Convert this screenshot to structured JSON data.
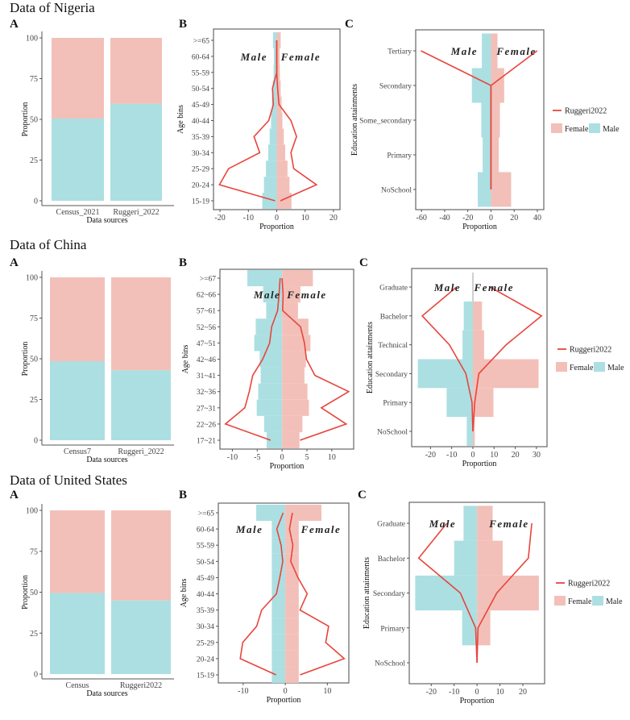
{
  "titles": [
    "Data of Nigeria",
    "Data of China",
    "Data of United States"
  ],
  "panel_letters": [
    "A",
    "B",
    "C"
  ],
  "colors": {
    "male": "#acdfe2",
    "female": "#f2c0b9",
    "line": "#e8453c",
    "axis": "#555555"
  },
  "chart_data": [
    {
      "type": "bar",
      "stacked": true,
      "panel": "A",
      "country": "Nigeria",
      "categories": [
        "Census_2021",
        "Ruggeri_2022"
      ],
      "series": [
        {
          "name": "Male",
          "values": [
            50.5,
            59.5
          ]
        },
        {
          "name": "Female",
          "values": [
            49.5,
            40.5
          ]
        }
      ],
      "xlabel": "Data sources",
      "ylabel": "Proportion",
      "ylim": [
        0,
        100
      ],
      "yticks": [
        0,
        25,
        50,
        75,
        100
      ]
    },
    {
      "type": "bar",
      "orientation": "horizontal",
      "panel": "B",
      "country": "Nigeria",
      "categories": [
        "15-19",
        "20-24",
        "25-29",
        "30-34",
        "35-39",
        "40-44",
        "45-49",
        "50-54",
        "55-59",
        "60-64",
        ">=65"
      ],
      "series": [
        {
          "name": "Male",
          "values": [
            -5.1,
            -4.5,
            -3.8,
            -3,
            -2.5,
            -2,
            -1.7,
            -1.4,
            -1.1,
            -1,
            -1.3
          ]
        },
        {
          "name": "Female",
          "values": [
            5.2,
            4.5,
            3.8,
            3,
            2.5,
            2,
            1.7,
            1.4,
            1.1,
            1,
            1.4
          ]
        }
      ],
      "line": {
        "name": "Ruggeri2022",
        "male": [
          -0.6,
          -20.2,
          -17,
          -6,
          -8,
          -2.8,
          -1.2,
          -1.5,
          0,
          0,
          0
        ],
        "female": [
          1.3,
          14,
          6,
          5,
          7,
          5,
          0.8,
          0.3,
          0,
          0,
          0
        ]
      },
      "xlabel": "Proportion",
      "ylabel": "Age bins",
      "xlim": [
        -22.3,
        22.3
      ],
      "xticks": [
        -20,
        -10,
        0,
        10,
        20
      ],
      "annotations": [
        {
          "text": "Male",
          "x": -8,
          "at": "60-64"
        },
        {
          "text": "Female",
          "x": 8.5,
          "at": "60-64"
        }
      ]
    },
    {
      "type": "bar",
      "orientation": "horizontal",
      "panel": "C",
      "country": "Nigeria",
      "categories": [
        "NoSchool",
        "Primary",
        "Some_secondary",
        "Secondary",
        "Tertiary"
      ],
      "series": [
        {
          "name": "Male",
          "values": [
            -11.4,
            -7.2,
            -8.4,
            -16.5,
            -7.9
          ]
        },
        {
          "name": "Female",
          "values": [
            17.4,
            6.7,
            7.7,
            11.4,
            5.6
          ]
        }
      ],
      "line": {
        "name": "Ruggeri2022",
        "male": [
          0,
          0,
          0,
          0,
          -60.5
        ],
        "female": [
          0,
          0,
          0,
          0,
          39.8
        ]
      },
      "xlabel": "Proportion",
      "ylabel": "Education attainments",
      "xlim": [
        -65,
        45.6
      ],
      "xticks": [
        -60,
        -40,
        -20,
        0,
        20,
        40
      ],
      "legend": {
        "line": "Ruggeri2022",
        "fills": [
          "Female",
          "Male"
        ],
        "position": "right"
      },
      "annotations": [
        {
          "text": "Male",
          "x": -23,
          "at": "Tertiary"
        },
        {
          "text": "Female",
          "x": 22,
          "at": "Tertiary"
        }
      ]
    },
    {
      "type": "bar",
      "stacked": true,
      "panel": "A",
      "country": "China",
      "categories": [
        "Census7",
        "Ruggeri_2022"
      ],
      "series": [
        {
          "name": "Male",
          "values": [
            48.5,
            43
          ]
        },
        {
          "name": "Female",
          "values": [
            51.5,
            57
          ]
        }
      ],
      "xlabel": "Data sources",
      "ylabel": "Proportion",
      "ylim": [
        0,
        100
      ],
      "yticks": [
        0,
        25,
        50,
        75,
        100
      ]
    },
    {
      "type": "bar",
      "orientation": "horizontal",
      "panel": "B",
      "country": "China",
      "categories": [
        "17~21",
        "22~26",
        "27~31",
        "32~36",
        "31~41",
        "42~46",
        "47~51",
        "52~56",
        "57~61",
        "62~66",
        ">=67"
      ],
      "series": [
        {
          "name": "Male",
          "values": [
            -3.1,
            -3.6,
            -5.1,
            -4.8,
            -4.3,
            -4.5,
            -5.6,
            -5.3,
            -3.2,
            -3.8,
            -7
          ]
        },
        {
          "name": "Female",
          "values": [
            3.5,
            4.1,
            5.4,
            5.1,
            4.5,
            4.8,
            5.7,
            5.3,
            3.2,
            3.7,
            6.2
          ]
        }
      ],
      "line": {
        "name": "Ruggeri2022",
        "male": [
          -2.3,
          -11.4,
          -7.5,
          -6.6,
          -5.9,
          -3.9,
          -2.5,
          -2.1,
          -0.9,
          -0.6,
          -0.4
        ],
        "female": [
          3.6,
          12.9,
          7.9,
          13.4,
          6.6,
          4.9,
          4.5,
          3.7,
          0.1,
          0.2,
          0
        ]
      },
      "xlabel": "Proportion",
      "ylabel": "Age bins",
      "xlim": [
        -12.5,
        14.4
      ],
      "xticks": [
        -10,
        -5,
        0,
        5,
        10
      ],
      "annotations": [
        {
          "text": "Male",
          "x": -3,
          "at": "62~66"
        },
        {
          "text": "Female",
          "x": 5,
          "at": "62~66"
        }
      ]
    },
    {
      "type": "bar",
      "orientation": "horizontal",
      "panel": "C",
      "country": "China",
      "categories": [
        "NoSchool",
        "Primary",
        "Secondary",
        "Technical",
        "Bachelor",
        "Graduate"
      ],
      "series": [
        {
          "name": "Male",
          "values": [
            -2.9,
            -12.4,
            -26,
            -4.9,
            -4.3,
            -0.4
          ]
        },
        {
          "name": "Female",
          "values": [
            0.9,
            9.7,
            31,
            5.3,
            4.3,
            0.4
          ]
        }
      ],
      "line": {
        "name": "Ruggeri2022",
        "male": [
          0,
          -0.4,
          -3.3,
          -11.1,
          -23.9,
          -7.7
        ],
        "female": [
          0,
          0.9,
          2.8,
          15.7,
          32.4,
          8.1
        ]
      },
      "xlabel": "Proportion",
      "ylabel": "Education attainments",
      "xlim": [
        -28.9,
        35
      ],
      "xticks": [
        -20,
        -10,
        0,
        10,
        20,
        30
      ],
      "legend": {
        "line": "Ruggeri2022",
        "fills": [
          "Female",
          "Male"
        ],
        "position": "right"
      },
      "annotations": [
        {
          "text": "Male",
          "x": -12,
          "at": "Graduate"
        },
        {
          "text": "Female",
          "x": 10,
          "at": "Graduate"
        }
      ]
    },
    {
      "type": "bar",
      "stacked": true,
      "panel": "A",
      "country": "United States",
      "categories": [
        "Census",
        "Ruggeri2022"
      ],
      "series": [
        {
          "name": "Male",
          "values": [
            49.5,
            45
          ]
        },
        {
          "name": "Female",
          "values": [
            50.5,
            55
          ]
        }
      ],
      "xlabel": "Data sources",
      "ylabel": "Proportion",
      "ylim": [
        0,
        100
      ],
      "yticks": [
        0,
        25,
        50,
        75,
        100
      ]
    },
    {
      "type": "bar",
      "orientation": "horizontal",
      "panel": "B",
      "country": "United States",
      "categories": [
        "15-19",
        "20-24",
        "25-29",
        "30-34",
        "35-39",
        "40-44",
        "45-49",
        "50-54",
        "55-59",
        "60-64",
        ">=65"
      ],
      "series": [
        {
          "name": "Male",
          "values": [
            -3.2,
            -3.2,
            -3.2,
            -3.2,
            -3.2,
            -3.2,
            -3.2,
            -3.2,
            -3.2,
            -3.2,
            -6.9
          ]
        },
        {
          "name": "Female",
          "values": [
            3.2,
            3.2,
            3.2,
            3.2,
            3.2,
            3.2,
            3.2,
            3.2,
            3.2,
            3.2,
            8.6
          ]
        }
      ],
      "line": {
        "name": "Ruggeri2022",
        "male": [
          -2.2,
          -10.7,
          -10.1,
          -6.8,
          -5.6,
          -2.1,
          -1.3,
          -0.6,
          -1,
          -2,
          -0.5
        ],
        "female": [
          3.5,
          14,
          9.6,
          10.3,
          3.5,
          5.2,
          3,
          1.3,
          1.8,
          1,
          1.7
        ]
      },
      "xlabel": "Proportion",
      "ylabel": "Age bins",
      "xlim": [
        -15.9,
        15.1
      ],
      "xticks": [
        -10,
        0,
        10
      ],
      "annotations": [
        {
          "text": "Male",
          "x": -8.5,
          "at": "60-64"
        },
        {
          "text": "Female",
          "x": 8.5,
          "at": "60-64"
        }
      ]
    },
    {
      "type": "bar",
      "orientation": "horizontal",
      "panel": "C",
      "country": "United States",
      "categories": [
        "NoSchool",
        "Primary",
        "Secondary",
        "Bachelor",
        "Graduate"
      ],
      "series": [
        {
          "name": "Male",
          "values": [
            0,
            -6.5,
            -27,
            -10,
            -5.9
          ]
        },
        {
          "name": "Female",
          "values": [
            0,
            5.8,
            27,
            11.2,
            6.8
          ]
        }
      ],
      "line": {
        "name": "Ruggeri2022",
        "male": [
          0,
          -0.6,
          -7.3,
          -25.5,
          -13.2
        ],
        "female": [
          0,
          0.4,
          8.6,
          22.4,
          23.9
        ]
      },
      "xlabel": "Proportion",
      "ylabel": "Education attainments",
      "xlim": [
        -29.6,
        29.5
      ],
      "xticks": [
        -20,
        -10,
        0,
        10,
        20
      ],
      "legend": {
        "line": "Ruggeri2022",
        "fills": [
          "Female",
          "Male"
        ],
        "position": "right"
      },
      "annotations": [
        {
          "text": "Male",
          "x": -15,
          "at": "Graduate"
        },
        {
          "text": "Female",
          "x": 14,
          "at": "Graduate"
        }
      ]
    }
  ]
}
